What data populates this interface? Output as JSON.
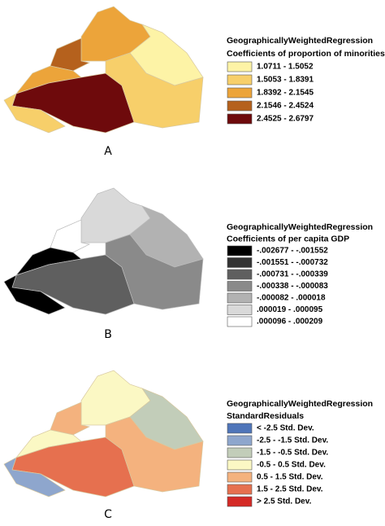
{
  "panels": [
    {
      "title": "GeographicallyWeightedRegression",
      "subtitle": "Coefficients of proportion of minorities",
      "caption": "A",
      "legend": [
        {
          "label": "1.0711 - 1.5052",
          "color": "#fdf3a6"
        },
        {
          "label": "1.5053 - 1.8391",
          "color": "#f7cf6a"
        },
        {
          "label": "1.8392 - 2.1545",
          "color": "#eca43a"
        },
        {
          "label": "2.1546 - 2.4524",
          "color": "#b5611d"
        },
        {
          "label": "2.4525 - 2.6797",
          "color": "#6e0a0c"
        }
      ]
    },
    {
      "title": "GeographicallyWeightedRegression",
      "subtitle": "Coefficients of per capita GDP",
      "caption": "B",
      "legend": [
        {
          "label": "-.002677 - -.001552",
          "color": "#000000"
        },
        {
          "label": "-.001551 - -.000732",
          "color": "#333333"
        },
        {
          "label": "-.000731 - -.000339",
          "color": "#5f5f5f"
        },
        {
          "label": "-.000338 - -.000083",
          "color": "#8a8a8a"
        },
        {
          "label": "-.000082 - .000018",
          "color": "#b2b2b2"
        },
        {
          "label": ".000019 - .000095",
          "color": "#d9d9d9"
        },
        {
          "label": ".000096 - .000209",
          "color": "#ffffff"
        }
      ]
    },
    {
      "title": "GeographicallyWeightedRegression",
      "subtitle": "StandardResiduals",
      "caption": "C",
      "legend": [
        {
          "label": "< -2.5 Std. Dev.",
          "color": "#4f75b9"
        },
        {
          "label": "-2.5 - -1.5 Std. Dev.",
          "color": "#8ea6cd"
        },
        {
          "label": "-1.5 - -0.5 Std. Dev.",
          "color": "#c2cdb9"
        },
        {
          "label": "-0.5 - 0.5 Std. Dev.",
          "color": "#fbf8c4"
        },
        {
          "label": "0.5 - 1.5 Std. Dev.",
          "color": "#f4b27e"
        },
        {
          "label": "1.5 - 2.5 Std. Dev.",
          "color": "#e6704f"
        },
        {
          "label": "> 2.5 Std. Dev.",
          "color": "#d42a26"
        }
      ]
    }
  ]
}
